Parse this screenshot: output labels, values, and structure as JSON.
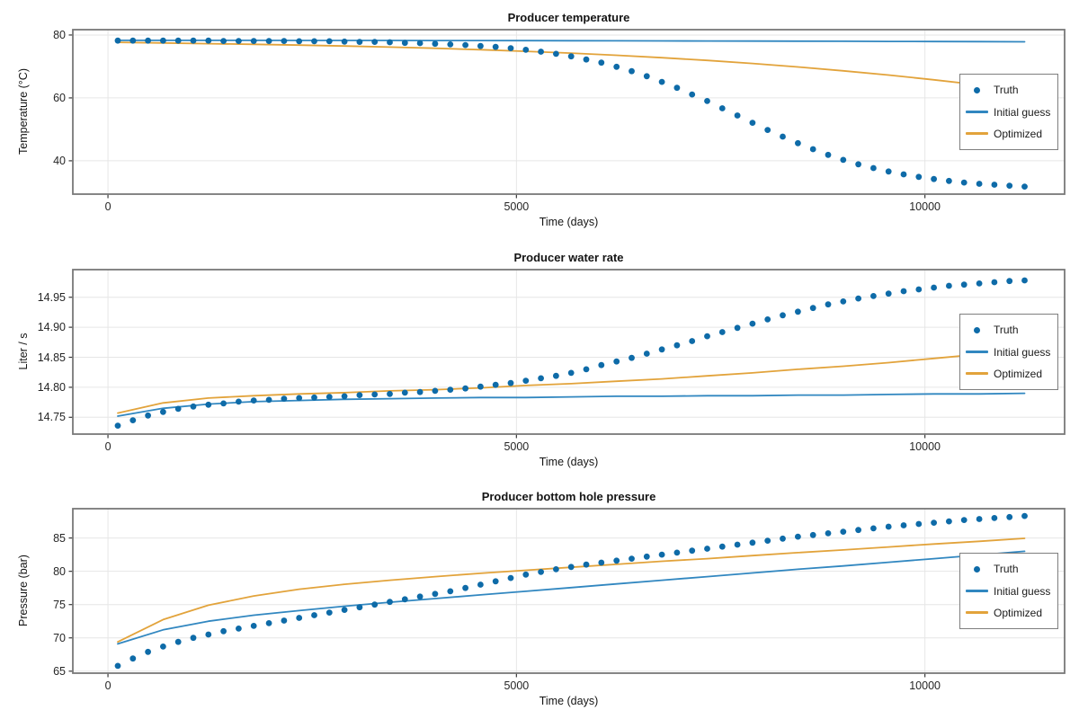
{
  "figure": {
    "background": "#ffffff",
    "spine_color": "#787878",
    "grid_color": "#e6e6e6",
    "tick_color": "#3a3a3a",
    "text_color": "#141414"
  },
  "legend": {
    "position": "center right",
    "items": [
      {
        "label": "Truth",
        "marker": "dot",
        "color": "#0e6ba8"
      },
      {
        "label": "Initial guess",
        "marker": "line",
        "color": "#3187c0"
      },
      {
        "label": "Optimized",
        "marker": "line",
        "color": "#e2a33b"
      }
    ]
  },
  "chart_data": [
    {
      "type": "line_scatter",
      "title": "Producer temperature",
      "xlabel": "Time (days)",
      "ylabel": "Temperature (°C)",
      "grid": true,
      "xlim": [
        -430,
        11710
      ],
      "ylim": [
        29.4,
        81.7
      ],
      "x_ticks": [
        {
          "v": 0,
          "label": "0"
        },
        {
          "v": 5000,
          "label": "5000"
        },
        {
          "v": 10000,
          "label": "10000"
        }
      ],
      "y_ticks": [
        {
          "v": 40,
          "label": "40"
        },
        {
          "v": 60,
          "label": "60"
        },
        {
          "v": 80,
          "label": "80"
        }
      ],
      "x": [
        120,
        305,
        490,
        675,
        860,
        1045,
        1230,
        1415,
        1600,
        1785,
        1970,
        2155,
        2340,
        2525,
        2710,
        2895,
        3080,
        3265,
        3450,
        3635,
        3820,
        4005,
        4190,
        4375,
        4560,
        4745,
        4930,
        5115,
        5300,
        5485,
        5670,
        5855,
        6040,
        6225,
        6410,
        6595,
        6780,
        6965,
        7150,
        7335,
        7520,
        7705,
        7890,
        8075,
        8260,
        8445,
        8630,
        8815,
        9000,
        9185,
        9370,
        9555,
        9740,
        9925,
        10110,
        10295,
        10480,
        10665,
        10850,
        11035,
        11220
      ],
      "series": [
        {
          "name": "Truth",
          "style": "scatter",
          "color": "#0e6ba8",
          "values": [
            78.2,
            78.2,
            78.2,
            78.2,
            78.2,
            78.2,
            78.2,
            78.1,
            78.1,
            78.1,
            78.1,
            78.1,
            78.0,
            78.0,
            78.0,
            77.9,
            77.8,
            77.8,
            77.7,
            77.5,
            77.4,
            77.2,
            77.0,
            76.8,
            76.5,
            76.2,
            75.8,
            75.3,
            74.7,
            74.0,
            73.2,
            72.2,
            71.2,
            69.9,
            68.5,
            66.9,
            65.1,
            63.2,
            61.1,
            59.0,
            56.7,
            54.4,
            52.1,
            49.8,
            47.7,
            45.6,
            43.7,
            41.9,
            40.3,
            38.9,
            37.7,
            36.6,
            35.7,
            34.9,
            34.2,
            33.6,
            33.1,
            32.7,
            32.4,
            32.1,
            31.8
          ]
        },
        {
          "name": "Initial guess",
          "style": "line",
          "color": "#3187c0",
          "x": [
            120,
            675,
            1230,
            1785,
            2340,
            2895,
            3450,
            4005,
            4560,
            5115,
            5670,
            6225,
            6780,
            7335,
            7890,
            8445,
            9000,
            9555,
            10110,
            10665,
            11220
          ],
          "values": [
            78.3,
            78.3,
            78.29,
            78.29,
            78.28,
            78.27,
            78.26,
            78.24,
            78.23,
            78.21,
            78.19,
            78.16,
            78.14,
            78.11,
            78.08,
            78.05,
            78.01,
            77.97,
            77.94,
            77.89,
            77.85
          ]
        },
        {
          "name": "Optimized",
          "style": "line",
          "color": "#e2a33b",
          "x": [
            120,
            675,
            1230,
            1785,
            2340,
            2895,
            3450,
            4005,
            4560,
            5115,
            5670,
            6225,
            6780,
            7335,
            7890,
            8445,
            9000,
            9555,
            10110,
            10665,
            11220
          ],
          "values": [
            77.66,
            77.46,
            77.25,
            77.03,
            76.78,
            76.49,
            76.16,
            75.78,
            75.33,
            74.82,
            74.23,
            73.56,
            72.79,
            71.92,
            70.94,
            69.84,
            68.62,
            67.26,
            65.76,
            64.11,
            62.29
          ]
        }
      ]
    },
    {
      "type": "line_scatter",
      "title": "Producer water rate",
      "xlabel": "Time (days)",
      "ylabel": "Liter / s",
      "grid": true,
      "xlim": [
        -430,
        11710
      ],
      "ylim": [
        14.722,
        14.996
      ],
      "x_ticks": [
        {
          "v": 0,
          "label": "0"
        },
        {
          "v": 5000,
          "label": "5000"
        },
        {
          "v": 10000,
          "label": "10000"
        }
      ],
      "y_ticks": [
        {
          "v": 14.75,
          "label": "14.75"
        },
        {
          "v": 14.8,
          "label": "14.80"
        },
        {
          "v": 14.85,
          "label": "14.85"
        },
        {
          "v": 14.9,
          "label": "14.90"
        },
        {
          "v": 14.95,
          "label": "14.95"
        }
      ],
      "x": [
        120,
        305,
        490,
        675,
        860,
        1045,
        1230,
        1415,
        1600,
        1785,
        1970,
        2155,
        2340,
        2525,
        2710,
        2895,
        3080,
        3265,
        3450,
        3635,
        3820,
        4005,
        4190,
        4375,
        4560,
        4745,
        4930,
        5115,
        5300,
        5485,
        5670,
        5855,
        6040,
        6225,
        6410,
        6595,
        6780,
        6965,
        7150,
        7335,
        7520,
        7705,
        7890,
        8075,
        8260,
        8445,
        8630,
        8815,
        9000,
        9185,
        9370,
        9555,
        9740,
        9925,
        10110,
        10295,
        10480,
        10665,
        10850,
        11035,
        11220
      ],
      "series": [
        {
          "name": "Truth",
          "style": "scatter",
          "color": "#0e6ba8",
          "values": [
            14.736,
            14.745,
            14.753,
            14.759,
            14.764,
            14.768,
            14.771,
            14.773,
            14.776,
            14.778,
            14.779,
            14.781,
            14.782,
            14.783,
            14.784,
            14.785,
            14.787,
            14.788,
            14.789,
            14.791,
            14.792,
            14.794,
            14.796,
            14.798,
            14.801,
            14.804,
            14.807,
            14.811,
            14.815,
            14.819,
            14.824,
            14.83,
            14.837,
            14.843,
            14.849,
            14.856,
            14.863,
            14.87,
            14.877,
            14.885,
            14.892,
            14.899,
            14.906,
            14.913,
            14.92,
            14.926,
            14.932,
            14.938,
            14.943,
            14.948,
            14.952,
            14.956,
            14.96,
            14.963,
            14.966,
            14.969,
            14.971,
            14.973,
            14.975,
            14.977,
            14.978
          ]
        },
        {
          "name": "Initial guess",
          "style": "line",
          "color": "#3187c0",
          "x": [
            120,
            675,
            1230,
            1785,
            2340,
            2895,
            3450,
            4005,
            4560,
            5115,
            5670,
            6225,
            6780,
            7335,
            7890,
            8445,
            9000,
            9555,
            10110,
            10665,
            11220
          ],
          "values": [
            14.752,
            14.765,
            14.772,
            14.776,
            14.778,
            14.78,
            14.781,
            14.782,
            14.783,
            14.783,
            14.784,
            14.785,
            14.785,
            14.786,
            14.786,
            14.787,
            14.787,
            14.788,
            14.789,
            14.789,
            14.79
          ]
        },
        {
          "name": "Optimized",
          "style": "line",
          "color": "#e2a33b",
          "x": [
            120,
            675,
            1230,
            1785,
            2340,
            2895,
            3450,
            4005,
            4560,
            5115,
            5670,
            6225,
            6780,
            7335,
            7890,
            8445,
            9000,
            9555,
            10110,
            10665,
            11220
          ],
          "values": [
            14.757,
            14.774,
            14.782,
            14.786,
            14.789,
            14.791,
            14.794,
            14.796,
            14.799,
            14.803,
            14.806,
            14.81,
            14.814,
            14.819,
            14.824,
            14.83,
            14.835,
            14.841,
            14.848,
            14.855,
            14.862
          ]
        }
      ]
    },
    {
      "type": "line_scatter",
      "title": "Producer bottom hole pressure",
      "xlabel": "Time (days)",
      "ylabel": "Pressure (bar)",
      "grid": true,
      "xlim": [
        -430,
        11710
      ],
      "ylim": [
        64.7,
        89.4
      ],
      "x_ticks": [
        {
          "v": 0,
          "label": "0"
        },
        {
          "v": 5000,
          "label": "5000"
        },
        {
          "v": 10000,
          "label": "10000"
        }
      ],
      "y_ticks": [
        {
          "v": 65,
          "label": "65"
        },
        {
          "v": 70,
          "label": "70"
        },
        {
          "v": 75,
          "label": "75"
        },
        {
          "v": 80,
          "label": "80"
        },
        {
          "v": 85,
          "label": "85"
        }
      ],
      "x": [
        120,
        305,
        490,
        675,
        860,
        1045,
        1230,
        1415,
        1600,
        1785,
        1970,
        2155,
        2340,
        2525,
        2710,
        2895,
        3080,
        3265,
        3450,
        3635,
        3820,
        4005,
        4190,
        4375,
        4560,
        4745,
        4930,
        5115,
        5300,
        5485,
        5670,
        5855,
        6040,
        6225,
        6410,
        6595,
        6780,
        6965,
        7150,
        7335,
        7520,
        7705,
        7890,
        8075,
        8260,
        8445,
        8630,
        8815,
        9000,
        9185,
        9370,
        9555,
        9740,
        9925,
        10110,
        10295,
        10480,
        10665,
        10850,
        11035,
        11220
      ],
      "series": [
        {
          "name": "Truth",
          "style": "scatter",
          "color": "#0e6ba8",
          "values": [
            65.8,
            66.9,
            67.9,
            68.7,
            69.4,
            70.0,
            70.5,
            71.0,
            71.4,
            71.8,
            72.2,
            72.6,
            73.0,
            73.4,
            73.8,
            74.2,
            74.6,
            75.0,
            75.4,
            75.8,
            76.2,
            76.6,
            77.0,
            77.5,
            78.0,
            78.5,
            79.0,
            79.5,
            79.9,
            80.3,
            80.65,
            81.0,
            81.3,
            81.6,
            81.9,
            82.2,
            82.5,
            82.8,
            83.1,
            83.4,
            83.7,
            84.0,
            84.3,
            84.6,
            84.9,
            85.2,
            85.45,
            85.7,
            85.95,
            86.2,
            86.45,
            86.7,
            86.9,
            87.1,
            87.3,
            87.5,
            87.7,
            87.85,
            88.0,
            88.15,
            88.3
          ]
        },
        {
          "name": "Initial guess",
          "style": "line",
          "color": "#3187c0",
          "x": [
            120,
            675,
            1230,
            1785,
            2340,
            2895,
            3450,
            4005,
            4560,
            5115,
            5670,
            6225,
            6780,
            7335,
            7890,
            8445,
            9000,
            9555,
            10110,
            10665,
            11220
          ],
          "values": [
            69.1,
            71.2,
            72.5,
            73.4,
            74.1,
            74.75,
            75.35,
            75.9,
            76.45,
            77.0,
            77.55,
            78.1,
            78.65,
            79.2,
            79.75,
            80.3,
            80.8,
            81.35,
            81.9,
            82.45,
            83.0
          ]
        },
        {
          "name": "Optimized",
          "style": "line",
          "color": "#e2a33b",
          "x": [
            120,
            675,
            1230,
            1785,
            2340,
            2895,
            3450,
            4005,
            4560,
            5115,
            5670,
            6225,
            6780,
            7335,
            7890,
            8445,
            9000,
            9555,
            10110,
            10665,
            11220
          ],
          "values": [
            69.4,
            72.75,
            74.9,
            76.3,
            77.3,
            78.05,
            78.65,
            79.2,
            79.7,
            80.15,
            80.6,
            81.05,
            81.5,
            81.9,
            82.35,
            82.8,
            83.2,
            83.65,
            84.1,
            84.5,
            84.95
          ]
        }
      ]
    }
  ]
}
